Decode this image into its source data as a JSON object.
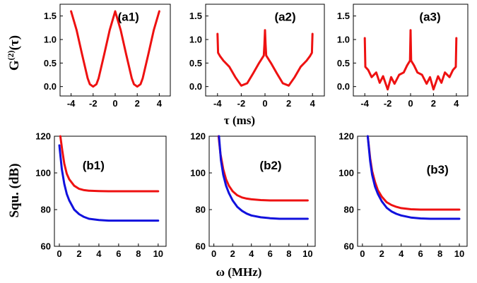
{
  "figure": {
    "top_ylabel_main": "G",
    "top_ylabel_sup": "(2)",
    "top_ylabel_arg": "(τ)",
    "top_xlabel": "τ (ms)",
    "bottom_ylabel": "Squ. (dB)",
    "bottom_xlabel": "ω (MHz)",
    "series_colors": {
      "red": "#ee1111",
      "blue": "#1111dd"
    }
  },
  "chart_data": [
    {
      "id": "a1",
      "label": "(a1)",
      "type": "line",
      "xlim": [
        -5,
        5
      ],
      "ylim": [
        -0.2,
        1.75
      ],
      "xticks": [
        -4,
        -2,
        0,
        2,
        4
      ],
      "yticks": [
        0.0,
        0.5,
        1.0,
        1.5
      ],
      "xticklabels": [
        "-4",
        "-2",
        "0",
        "2",
        "4"
      ],
      "yticklabels": [
        "0.0",
        "0.5",
        "1.0",
        "1.5"
      ],
      "series": [
        {
          "color": "red",
          "x": [
            -4,
            -3.5,
            -3,
            -2.5,
            -2.3,
            -2,
            -1.7,
            -1.5,
            -1,
            -0.5,
            0,
            0.5,
            1,
            1.5,
            1.7,
            2,
            2.3,
            2.5,
            3,
            3.5,
            4
          ],
          "y": [
            1.6,
            1.2,
            0.68,
            0.18,
            0.05,
            0.0,
            0.05,
            0.18,
            0.68,
            1.2,
            1.6,
            1.2,
            0.68,
            0.18,
            0.05,
            0.0,
            0.05,
            0.18,
            0.68,
            1.2,
            1.6
          ]
        }
      ]
    },
    {
      "id": "a2",
      "label": "(a2)",
      "type": "line",
      "xlim": [
        -5,
        5
      ],
      "ylim": [
        -0.2,
        1.75
      ],
      "xticks": [
        -4,
        -2,
        0,
        2,
        4
      ],
      "yticks": [
        0.0,
        0.5,
        1.0,
        1.5
      ],
      "xticklabels": [
        "-4",
        "-2",
        "0",
        "2",
        "4"
      ],
      "yticklabels": [
        "0.0",
        "0.5",
        "1.0",
        "1.5"
      ],
      "series": [
        {
          "color": "red",
          "x": [
            -4,
            -3.95,
            -3.8,
            -3.5,
            -3,
            -2.5,
            -2,
            -1.5,
            -1,
            -0.5,
            -0.1,
            -0.05,
            0,
            0.05,
            0.1,
            0.5,
            1,
            1.5,
            2,
            2.5,
            3,
            3.5,
            3.8,
            3.95,
            4
          ],
          "y": [
            1.12,
            0.72,
            0.65,
            0.55,
            0.42,
            0.2,
            0.02,
            0.07,
            0.28,
            0.5,
            0.66,
            0.9,
            1.2,
            0.9,
            0.66,
            0.5,
            0.28,
            0.07,
            0.02,
            0.2,
            0.42,
            0.55,
            0.65,
            0.72,
            1.12
          ]
        }
      ]
    },
    {
      "id": "a3",
      "label": "(a3)",
      "type": "line",
      "xlim": [
        -5,
        5
      ],
      "ylim": [
        -0.2,
        1.75
      ],
      "xticks": [
        -4,
        -2,
        0,
        2,
        4
      ],
      "yticks": [
        0.0,
        0.5,
        1.0,
        1.5
      ],
      "xticklabels": [
        "-4",
        "-2",
        "0",
        "2",
        "4"
      ],
      "yticklabels": [
        "0.0",
        "0.5",
        "1.0",
        "1.5"
      ],
      "series": [
        {
          "color": "red",
          "x": [
            -4,
            -3.95,
            -3.7,
            -3.4,
            -3,
            -2.7,
            -2.4,
            -2,
            -1.7,
            -1.4,
            -1,
            -0.6,
            -0.3,
            -0.05,
            0,
            0.05,
            0.3,
            0.6,
            1,
            1.4,
            1.7,
            2,
            2.4,
            2.7,
            3,
            3.4,
            3.7,
            3.95,
            4
          ],
          "y": [
            1.03,
            0.42,
            0.35,
            0.2,
            0.3,
            0.08,
            0.22,
            -0.06,
            0.2,
            0.06,
            0.25,
            0.3,
            0.45,
            0.55,
            1.2,
            0.55,
            0.45,
            0.3,
            0.25,
            0.06,
            0.2,
            -0.06,
            0.22,
            0.08,
            0.3,
            0.2,
            0.35,
            0.42,
            1.03
          ]
        }
      ]
    },
    {
      "id": "b1",
      "label": "(b1)",
      "type": "line",
      "xlim": [
        -0.5,
        10.8
      ],
      "ylim": [
        60,
        120
      ],
      "xticks": [
        0,
        2,
        4,
        6,
        8,
        10
      ],
      "yticks": [
        60,
        80,
        100,
        120
      ],
      "xticklabels": [
        "0",
        "2",
        "4",
        "6",
        "8",
        "10"
      ],
      "yticklabels": [
        "60",
        "80",
        "100",
        "120"
      ],
      "series": [
        {
          "color": "red",
          "x": [
            0.1,
            0.3,
            0.5,
            0.75,
            1,
            1.5,
            2,
            2.5,
            3,
            4,
            5,
            6,
            7,
            8,
            9,
            10
          ],
          "y": [
            120,
            112,
            105,
            99.5,
            96.5,
            93,
            91.3,
            90.6,
            90.3,
            90.1,
            90,
            90,
            90,
            90,
            90,
            90
          ]
        },
        {
          "color": "blue",
          "x": [
            0,
            0.25,
            0.5,
            0.75,
            1,
            1.5,
            2,
            2.5,
            3,
            4,
            5,
            6,
            7,
            8,
            9,
            10
          ],
          "y": [
            115,
            102,
            94,
            88.5,
            85,
            80,
            77.5,
            76,
            75,
            74.3,
            74,
            74,
            74,
            74,
            74,
            74
          ]
        }
      ]
    },
    {
      "id": "b2",
      "label": "(b2)",
      "type": "line",
      "xlim": [
        -0.5,
        10.8
      ],
      "ylim": [
        60,
        120
      ],
      "xticks": [
        0,
        2,
        4,
        6,
        8,
        10
      ],
      "yticks": [
        60,
        80,
        100,
        120
      ],
      "xticklabels": [
        "0",
        "2",
        "4",
        "6",
        "8",
        "10"
      ],
      "yticklabels": [
        "60",
        "80",
        "100",
        "120"
      ],
      "series": [
        {
          "color": "red",
          "x": [
            0.5,
            0.7,
            1,
            1.3,
            1.6,
            2,
            2.5,
            3,
            3.5,
            4,
            5,
            6,
            7,
            8,
            9,
            10
          ],
          "y": [
            120,
            110.5,
            102,
            96.5,
            93,
            90,
            87.8,
            86.6,
            86,
            85.6,
            85.2,
            85,
            85,
            85,
            85,
            85
          ]
        },
        {
          "color": "blue",
          "x": [
            0.55,
            0.75,
            1,
            1.3,
            1.6,
            2,
            2.5,
            3,
            3.5,
            4,
            5,
            6,
            7,
            8,
            9,
            10
          ],
          "y": [
            120,
            107,
            99,
            93,
            89,
            85,
            81.5,
            79.3,
            77.8,
            76.8,
            75.8,
            75.3,
            75,
            75,
            75,
            75
          ]
        }
      ]
    },
    {
      "id": "b3",
      "label": "(b3)",
      "type": "line",
      "xlim": [
        -0.5,
        10.8
      ],
      "ylim": [
        60,
        120
      ],
      "xticks": [
        0,
        2,
        4,
        6,
        8,
        10
      ],
      "yticks": [
        60,
        80,
        100,
        120
      ],
      "xticklabels": [
        "0",
        "2",
        "4",
        "6",
        "8",
        "10"
      ],
      "yticklabels": [
        "60",
        "80",
        "100",
        "120"
      ],
      "series": [
        {
          "color": "red",
          "x": [
            0.55,
            0.8,
            1,
            1.3,
            1.6,
            2,
            2.5,
            3,
            3.5,
            4,
            5,
            6,
            7,
            8,
            9,
            10
          ],
          "y": [
            120,
            108,
            101,
            95,
            90.5,
            87,
            84,
            82.5,
            81.5,
            80.8,
            80.2,
            80,
            80,
            80,
            80,
            80
          ]
        },
        {
          "color": "blue",
          "x": [
            0.55,
            0.8,
            1,
            1.3,
            1.6,
            2,
            2.5,
            3,
            3.5,
            4,
            5,
            6,
            7,
            8,
            9,
            10
          ],
          "y": [
            120,
            106.5,
            99,
            92.5,
            88.5,
            84.5,
            81,
            79,
            77.7,
            76.8,
            75.7,
            75.2,
            75,
            75,
            75,
            75
          ]
        }
      ]
    }
  ]
}
